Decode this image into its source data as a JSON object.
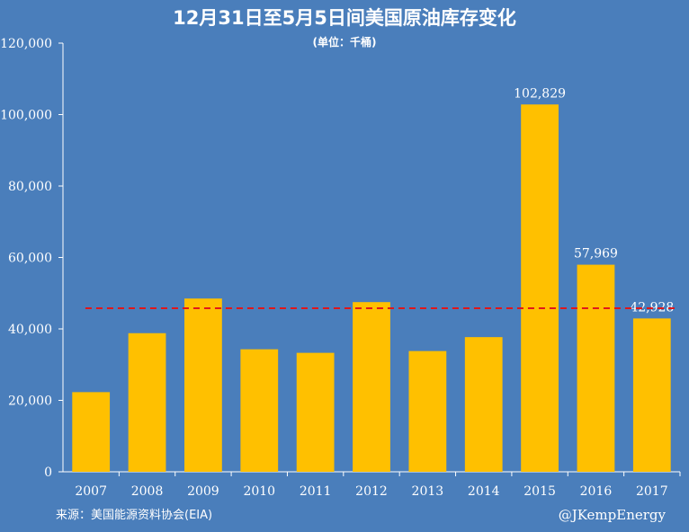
{
  "colors": {
    "background": "#4a7ebb",
    "bar": "#ffc000",
    "reference_line": "#e0171a",
    "text": "#ffffff",
    "axis": "#ffffff"
  },
  "chart_data": {
    "type": "bar",
    "title": "12月31日至5月5日间美国原油库存变化",
    "subtitle": "(单位：千桶)",
    "categories": [
      "2007",
      "2008",
      "2009",
      "2010",
      "2011",
      "2012",
      "2013",
      "2014",
      "2015",
      "2016",
      "2017"
    ],
    "values": [
      22300,
      38800,
      48500,
      34300,
      33300,
      47500,
      33800,
      37700,
      102829,
      57969,
      42928
    ],
    "data_labels": {
      "8": "102,829",
      "9": "57,969",
      "10": "42,928"
    },
    "ylim": [
      0,
      120000
    ],
    "y_ticks": [
      0,
      20000,
      40000,
      60000,
      80000,
      100000,
      120000
    ],
    "y_tick_labels": [
      "0",
      "20,000",
      "40,000",
      "60,000",
      "80,000",
      "100,000",
      "120,000"
    ],
    "reference_line": {
      "value": 45800,
      "style": "dashed"
    },
    "grid": false,
    "legend": "none"
  },
  "footer": {
    "source": "来源：美国能源资料协会(EIA)",
    "credit": "@JKempEnergy"
  }
}
